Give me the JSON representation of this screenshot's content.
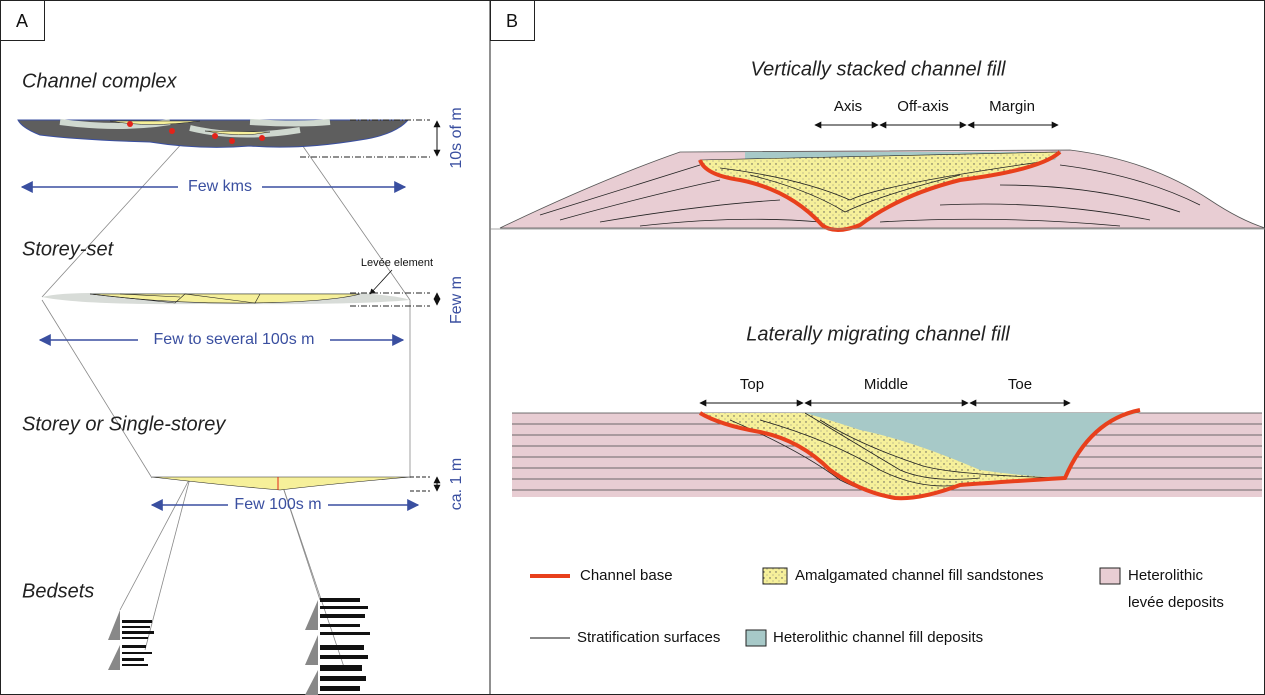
{
  "panel_a": {
    "label": "A",
    "levels": [
      {
        "title": "Channel complex",
        "thickness": "10s of m",
        "width": "Few kms"
      },
      {
        "title": "Storey-set",
        "annotation": "Levée element",
        "thickness": "Few m",
        "width": "Few to several 100s m"
      },
      {
        "title": "Storey or Single-storey",
        "thickness": "ca. 1 m",
        "width": "Few 100s m"
      },
      {
        "title": "Bedsets"
      }
    ]
  },
  "panel_b": {
    "label": "B",
    "diagrams": [
      {
        "title": "Vertically stacked channel fill",
        "zones": [
          "Axis",
          "Off-axis",
          "Margin"
        ]
      },
      {
        "title": "Laterally migrating channel fill",
        "zones": [
          "Top",
          "Middle",
          "Toe"
        ]
      }
    ],
    "legend": [
      {
        "label": "Channel base"
      },
      {
        "label": "Amalgamated channel fill sandstones"
      },
      {
        "lines": [
          "Heterolithic",
          "levée deposits"
        ]
      },
      {
        "label": "Stratification surfaces"
      },
      {
        "label": "Heterolithic channel fill deposits"
      }
    ]
  }
}
